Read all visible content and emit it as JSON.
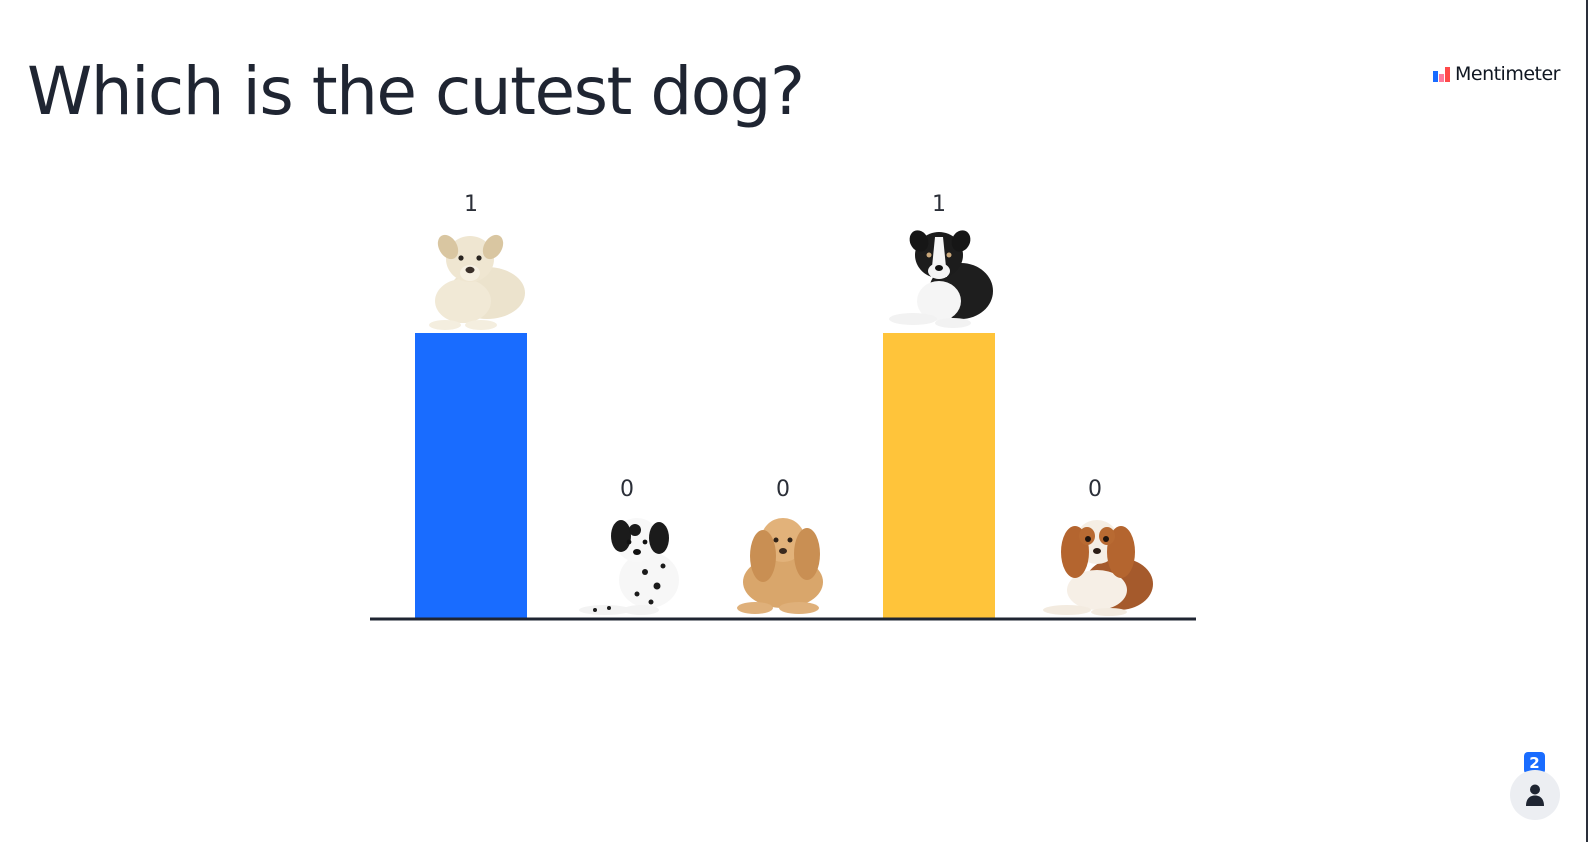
{
  "slide": {
    "question": "Which is the cutest dog?"
  },
  "brand": {
    "name": "Mentimeter",
    "logo_icon": "mentimeter-logo-icon",
    "logo_colors": [
      "#196cff",
      "#ff7a9c",
      "#ff4a4a"
    ]
  },
  "participants": {
    "count": "2",
    "icon": "person-icon",
    "badge_color": "#196cff"
  },
  "chart_data": {
    "type": "bar",
    "categories": [
      "white puppy",
      "dalmatian puppy",
      "cocker spaniel",
      "border collie puppy",
      "cavalier king charles spaniel"
    ],
    "values": [
      1,
      0,
      0,
      1,
      0
    ],
    "value_labels": [
      "1",
      "0",
      "0",
      "1",
      "0"
    ],
    "category_images": [
      "white-puppy-image",
      "dalmatian-image",
      "cocker-spaniel-image",
      "border-collie-image",
      "cavalier-spaniel-image"
    ],
    "colors": [
      "#196cff",
      "#ff7a9c",
      "#2ed0b7",
      "#ffc43a",
      "#7b61ff"
    ],
    "ylim": [
      0,
      1
    ],
    "grid": false,
    "legend": "none"
  }
}
